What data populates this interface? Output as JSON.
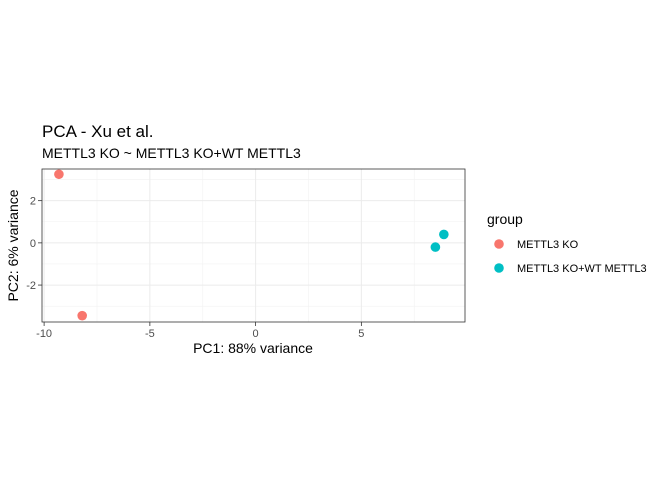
{
  "chart_data": {
    "type": "scatter",
    "title": "PCA - Xu et al.",
    "subtitle": "METTL3 KO ~ METTL3 KO+WT METTL3",
    "xlabel": "PC1: 88% variance",
    "ylabel": "PC2: 6% variance",
    "xlim": [
      -10.1,
      9.9
    ],
    "ylim": [
      -3.75,
      3.5
    ],
    "xticks": [
      -10,
      -5,
      0,
      5
    ],
    "xtick_labels": [
      "-10",
      "-5",
      "0",
      "5"
    ],
    "yticks": [
      2,
      0,
      -2
    ],
    "ytick_labels": [
      "2",
      "0",
      "-2"
    ],
    "grid": true,
    "legend": {
      "title": "group",
      "position": "right"
    },
    "series": [
      {
        "name": "METTL3 KO",
        "color": "#F8766D",
        "points": [
          {
            "x": -9.3,
            "y": 3.25
          },
          {
            "x": -8.2,
            "y": -3.45
          }
        ]
      },
      {
        "name": "METTL3 KO+WT METTL3",
        "color": "#00BFC4",
        "points": [
          {
            "x": 8.9,
            "y": 0.4
          },
          {
            "x": 8.5,
            "y": -0.2
          }
        ]
      }
    ]
  }
}
